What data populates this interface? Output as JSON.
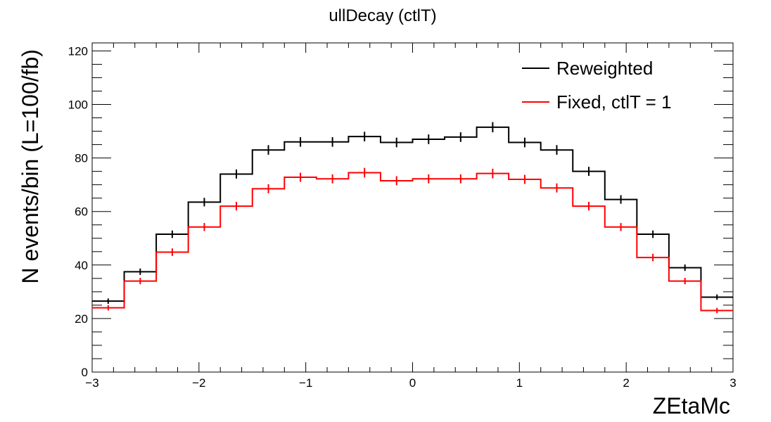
{
  "chart_data": {
    "type": "step",
    "title": "ullDecay (ctlT)",
    "xlabel": "ZEtaMc",
    "ylabel": "N events/bin (L=100/fb)",
    "xlim": [
      -3,
      3
    ],
    "ylim": [
      0,
      123
    ],
    "x_ticks": [
      -3,
      -2,
      -1,
      0,
      1,
      2,
      3
    ],
    "x_tick_labels": [
      "−3",
      "−2",
      "−1",
      "0",
      "1",
      "2",
      "3"
    ],
    "y_ticks": [
      0,
      20,
      40,
      60,
      80,
      100,
      120
    ],
    "y_tick_labels": [
      "0",
      "20",
      "40",
      "60",
      "80",
      "100",
      "120"
    ],
    "bin_edges": [
      -3.0,
      -2.7,
      -2.4,
      -2.1,
      -1.8,
      -1.5,
      -1.2,
      -0.9,
      -0.6,
      -0.3,
      0.0,
      0.3,
      0.6,
      0.9,
      1.2,
      1.5,
      1.8,
      2.1,
      2.4,
      2.7,
      3.0
    ],
    "grid": false,
    "legend_position": "top-right",
    "series": [
      {
        "name": "Reweighted",
        "color": "#000000",
        "values": [
          26.5,
          37.5,
          51.5,
          63.5,
          74.0,
          83.0,
          86.0,
          86.0,
          88.0,
          85.8,
          87.0,
          87.8,
          91.5,
          85.8,
          83.0,
          75.0,
          64.5,
          51.5,
          39.0,
          28.0
        ],
        "errors": [
          1.0,
          1.2,
          1.4,
          1.6,
          1.7,
          1.8,
          1.8,
          1.8,
          1.8,
          1.8,
          1.8,
          1.8,
          1.9,
          1.8,
          1.8,
          1.7,
          1.6,
          1.4,
          1.2,
          1.0
        ]
      },
      {
        "name": "Fixed, ctlT = 1",
        "color": "#ff0000",
        "values": [
          24.0,
          34.0,
          44.8,
          54.2,
          62.0,
          68.5,
          72.8,
          72.2,
          74.5,
          71.5,
          72.2,
          72.2,
          74.2,
          72.0,
          68.8,
          62.0,
          54.2,
          42.8,
          34.0,
          23.0
        ],
        "errors": [
          1.0,
          1.2,
          1.4,
          1.5,
          1.6,
          1.7,
          1.7,
          1.7,
          1.8,
          1.7,
          1.7,
          1.7,
          1.8,
          1.7,
          1.7,
          1.6,
          1.5,
          1.4,
          1.2,
          1.0
        ]
      }
    ]
  }
}
